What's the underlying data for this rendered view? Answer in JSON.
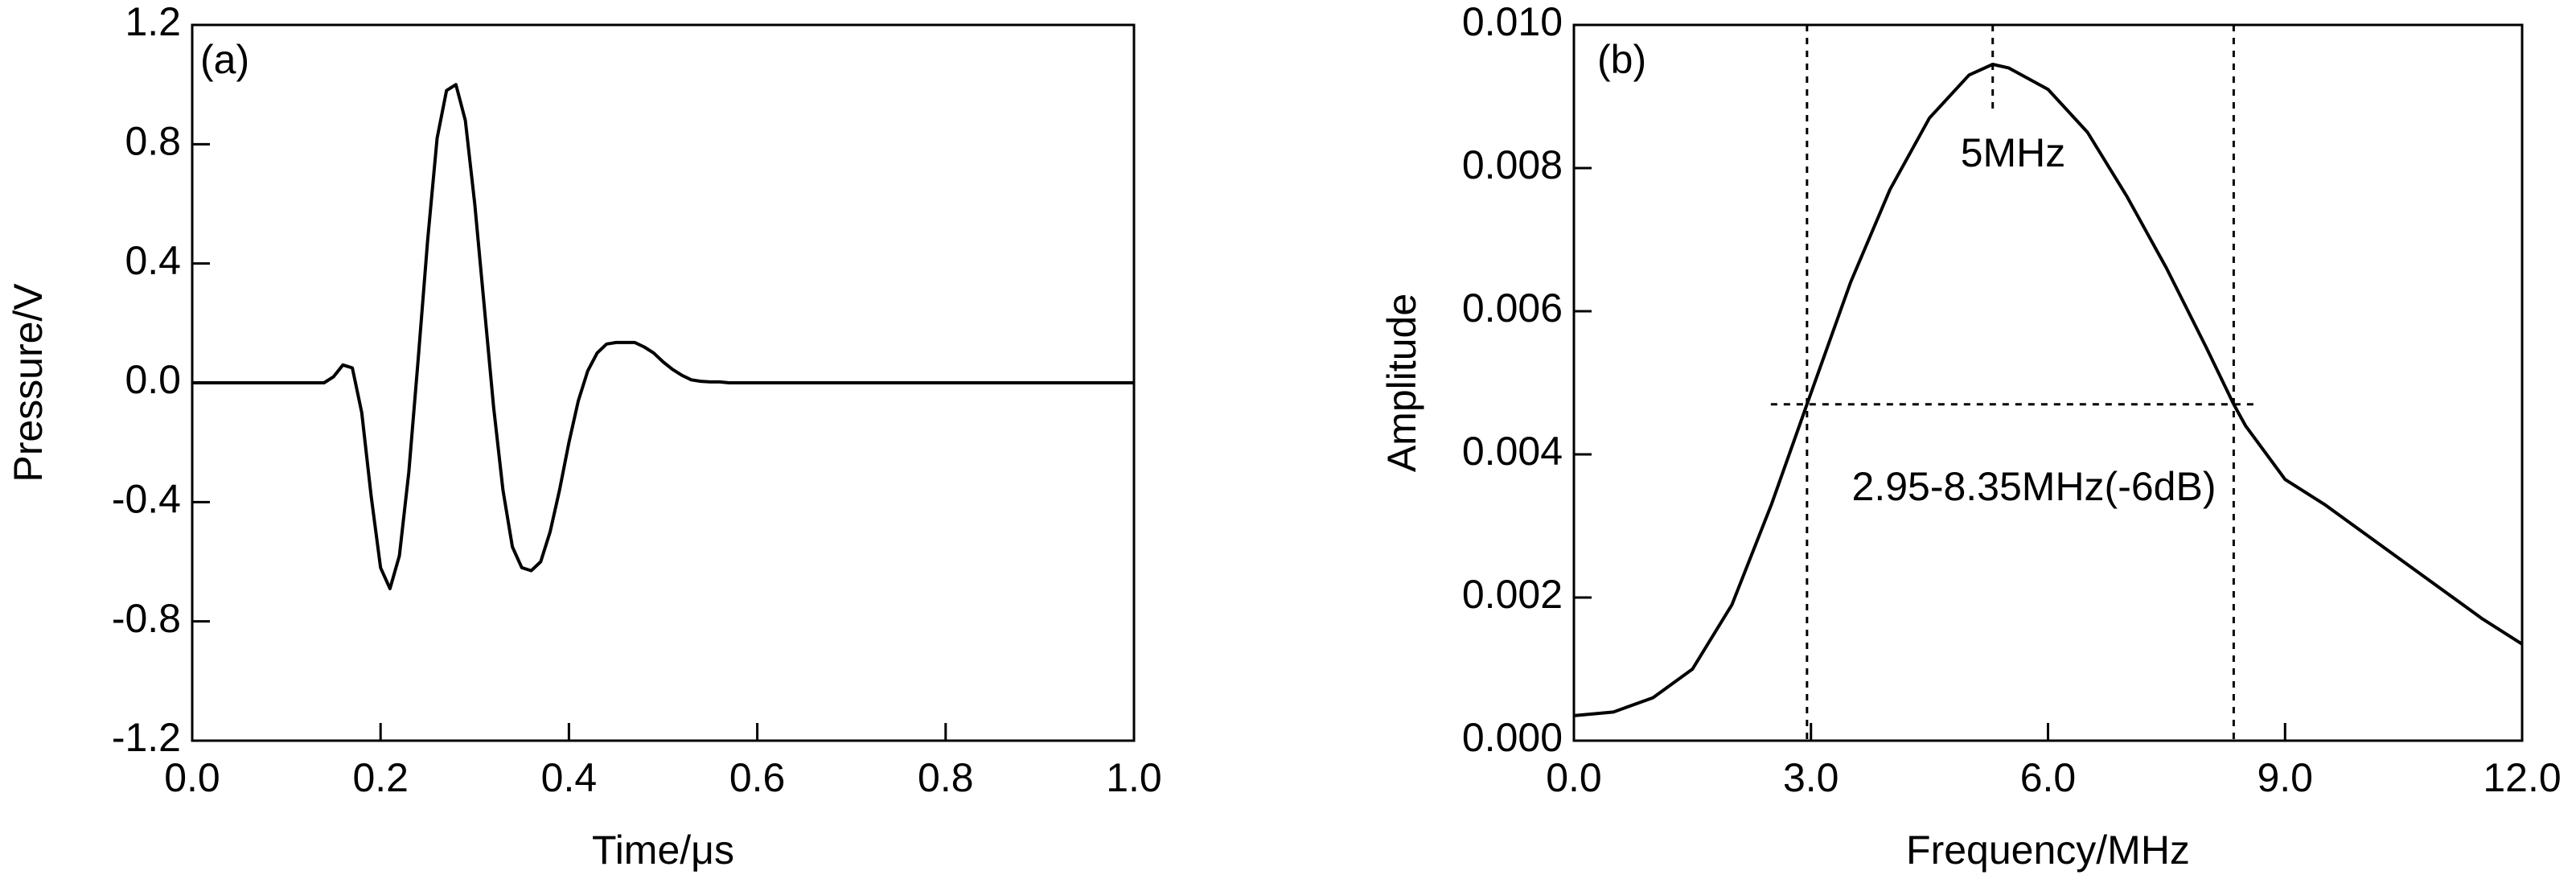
{
  "chart_data": [
    {
      "type": "line",
      "annotations": [
        "(a)"
      ],
      "xlabel": "Time/μs",
      "ylabel": "Pressure/V",
      "color": "#000000",
      "x": [
        0,
        0.14,
        0.15,
        0.16,
        0.17,
        0.18,
        0.19,
        0.2,
        0.21,
        0.22,
        0.23,
        0.24,
        0.25,
        0.26,
        0.27,
        0.28,
        0.29,
        0.3,
        0.31,
        0.32,
        0.33,
        0.34,
        0.35,
        0.36,
        0.37,
        0.38,
        0.39,
        0.4,
        0.41,
        0.42,
        0.43,
        0.44,
        0.45,
        0.46,
        0.47,
        0.48,
        0.49,
        0.5,
        0.51,
        0.52,
        0.53,
        0.54,
        0.55,
        0.56,
        0.57,
        1.0
      ],
      "values": [
        0,
        0,
        0.02,
        0.06,
        0.05,
        -0.1,
        -0.38,
        -0.62,
        -0.69,
        -0.58,
        -0.3,
        0.08,
        0.48,
        0.82,
        0.98,
        1.0,
        0.88,
        0.6,
        0.26,
        -0.08,
        -0.36,
        -0.55,
        -0.62,
        -0.63,
        -0.6,
        -0.5,
        -0.36,
        -0.2,
        -0.06,
        0.04,
        0.1,
        0.13,
        0.135,
        0.135,
        0.135,
        0.12,
        0.1,
        0.07,
        0.045,
        0.025,
        0.01,
        0.005,
        0.003,
        0.003,
        0,
        0
      ],
      "xlim": [
        0,
        1
      ],
      "ylim": [
        -1.2,
        1.2
      ],
      "xticks": [
        {
          "value": 0,
          "label": "0.0"
        },
        0.2,
        0.4,
        0.6,
        0.8,
        {
          "value": 1,
          "label": "1.0"
        }
      ],
      "yticks": [
        -1.2,
        -0.8,
        -0.4,
        {
          "value": 0,
          "label": "0.0"
        },
        0.4,
        0.8,
        1.2
      ]
    },
    {
      "type": "line",
      "annotations": [
        "(b)",
        "5MHz",
        "2.95-8.35MHz(-6dB)"
      ],
      "xlabel": "Frequency/MHz",
      "ylabel": "Amplitude",
      "color": "#000000",
      "x": [
        0,
        0.5,
        1,
        1.5,
        2,
        2.5,
        2.95,
        3.5,
        4,
        4.5,
        5,
        5.3,
        5.5,
        6,
        6.5,
        7,
        7.5,
        8,
        8.35,
        8.5,
        9,
        9.5,
        10,
        10.5,
        11,
        11.5,
        12
      ],
      "values": [
        0.00035,
        0.0004,
        0.0006,
        0.001,
        0.0019,
        0.0033,
        0.0047,
        0.0064,
        0.0077,
        0.0087,
        0.0093,
        0.00945,
        0.0094,
        0.0091,
        0.0085,
        0.0076,
        0.0066,
        0.0055,
        0.0047,
        0.0044,
        0.00365,
        0.0033,
        0.0029,
        0.0025,
        0.0021,
        0.0017,
        0.00135
      ],
      "xlim": [
        0,
        12
      ],
      "ylim": [
        0,
        0.01
      ],
      "xticks": [
        {
          "value": 0,
          "label": "0.0"
        },
        {
          "value": 3,
          "label": "3.0"
        },
        {
          "value": 6,
          "label": "6.0"
        },
        {
          "value": 9,
          "label": "9.0"
        },
        {
          "value": 12,
          "label": "12.0"
        }
      ],
      "yticks": [
        {
          "value": 0,
          "label": "0.000"
        },
        0.002,
        0.004,
        0.006,
        0.008,
        {
          "value": 0.01,
          "label": "0.010"
        }
      ],
      "vlines": [
        2.95,
        5.3,
        8.35
      ],
      "hline": 0.0047
    }
  ]
}
